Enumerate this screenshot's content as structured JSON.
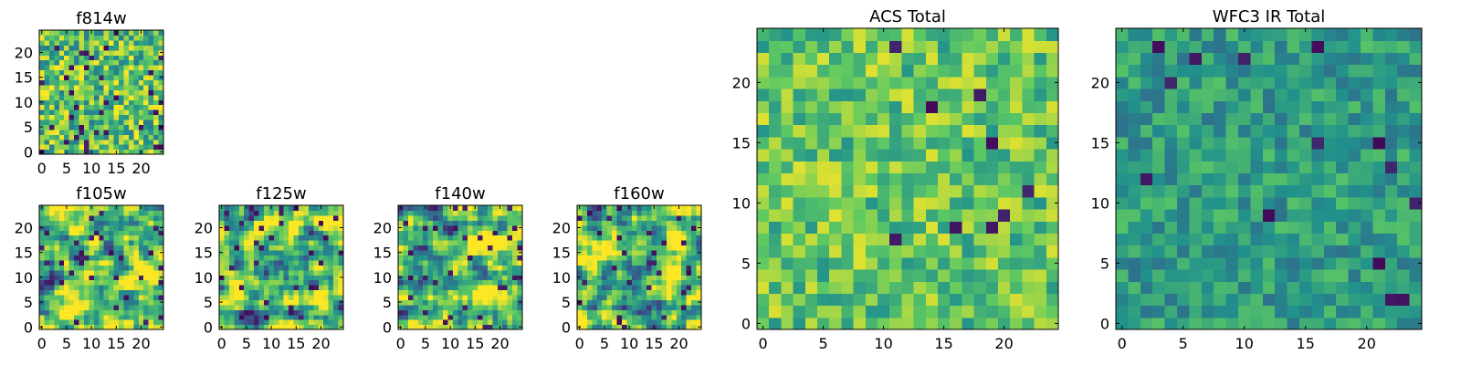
{
  "chart_data": [
    {
      "type": "heatmap",
      "title": "f814w",
      "grid_size": [
        25,
        25
      ],
      "xlim": [
        -0.5,
        24.5
      ],
      "ylim": [
        -0.5,
        24.5
      ],
      "xticks": [
        0,
        5,
        10,
        15,
        20
      ],
      "yticks": [
        0,
        5,
        10,
        15,
        20
      ],
      "colormap": "viridis",
      "seed": 814,
      "smooth": 0,
      "bias": 0.72,
      "spread": 0.18,
      "dark_fraction": 0.05
    },
    {
      "type": "heatmap",
      "title": "f105w",
      "grid_size": [
        25,
        25
      ],
      "xlim": [
        -0.5,
        24.5
      ],
      "ylim": [
        -0.5,
        24.5
      ],
      "xticks": [
        0,
        5,
        10,
        15,
        20
      ],
      "yticks": [
        0,
        5,
        10,
        15,
        20
      ],
      "colormap": "viridis",
      "seed": 105,
      "smooth": 1,
      "bias": 0.72,
      "spread": 0.22,
      "dark_fraction": 0.05
    },
    {
      "type": "heatmap",
      "title": "f125w",
      "grid_size": [
        25,
        25
      ],
      "xlim": [
        -0.5,
        24.5
      ],
      "ylim": [
        -0.5,
        24.5
      ],
      "xticks": [
        0,
        5,
        10,
        15,
        20
      ],
      "yticks": [
        0,
        5,
        10,
        15,
        20
      ],
      "colormap": "viridis",
      "seed": 125,
      "smooth": 1,
      "bias": 0.7,
      "spread": 0.24,
      "dark_fraction": 0.05
    },
    {
      "type": "heatmap",
      "title": "f140w",
      "grid_size": [
        25,
        25
      ],
      "xlim": [
        -0.5,
        24.5
      ],
      "ylim": [
        -0.5,
        24.5
      ],
      "xticks": [
        0,
        5,
        10,
        15,
        20
      ],
      "yticks": [
        0,
        5,
        10,
        15,
        20
      ],
      "colormap": "viridis",
      "seed": 140,
      "smooth": 1,
      "bias": 0.7,
      "spread": 0.24,
      "dark_fraction": 0.05
    },
    {
      "type": "heatmap",
      "title": "f160w",
      "grid_size": [
        25,
        25
      ],
      "xlim": [
        -0.5,
        24.5
      ],
      "ylim": [
        -0.5,
        24.5
      ],
      "xticks": [
        0,
        5,
        10,
        15,
        20
      ],
      "yticks": [
        0,
        5,
        10,
        15,
        20
      ],
      "colormap": "viridis",
      "seed": 160,
      "smooth": 1,
      "bias": 0.7,
      "spread": 0.24,
      "dark_fraction": 0.05
    },
    {
      "type": "heatmap",
      "title": "ACS Total",
      "grid_size": [
        25,
        25
      ],
      "xlim": [
        -0.5,
        24.5
      ],
      "ylim": [
        -0.5,
        24.5
      ],
      "xticks": [
        0,
        5,
        10,
        15,
        20
      ],
      "yticks": [
        0,
        5,
        10,
        15,
        20
      ],
      "colormap": "viridis",
      "seed": 901,
      "smooth": 0,
      "bias": 0.74,
      "spread": 0.13,
      "dark_fraction": 0.018
    },
    {
      "type": "heatmap",
      "title": "WFC3 IR Total",
      "grid_size": [
        25,
        25
      ],
      "xlim": [
        -0.5,
        24.5
      ],
      "ylim": [
        -0.5,
        24.5
      ],
      "xticks": [
        0,
        5,
        10,
        15,
        20
      ],
      "yticks": [
        0,
        5,
        10,
        15,
        20
      ],
      "colormap": "viridis",
      "seed": 333,
      "smooth": 0,
      "bias": 0.55,
      "spread": 0.1,
      "dark_fraction": 0.02
    }
  ],
  "colors": {
    "viridis_stops": [
      "#440154",
      "#3b528b",
      "#21918c",
      "#5ec962",
      "#fde725"
    ],
    "axes_edge": "#000000",
    "background": "#ffffff"
  }
}
